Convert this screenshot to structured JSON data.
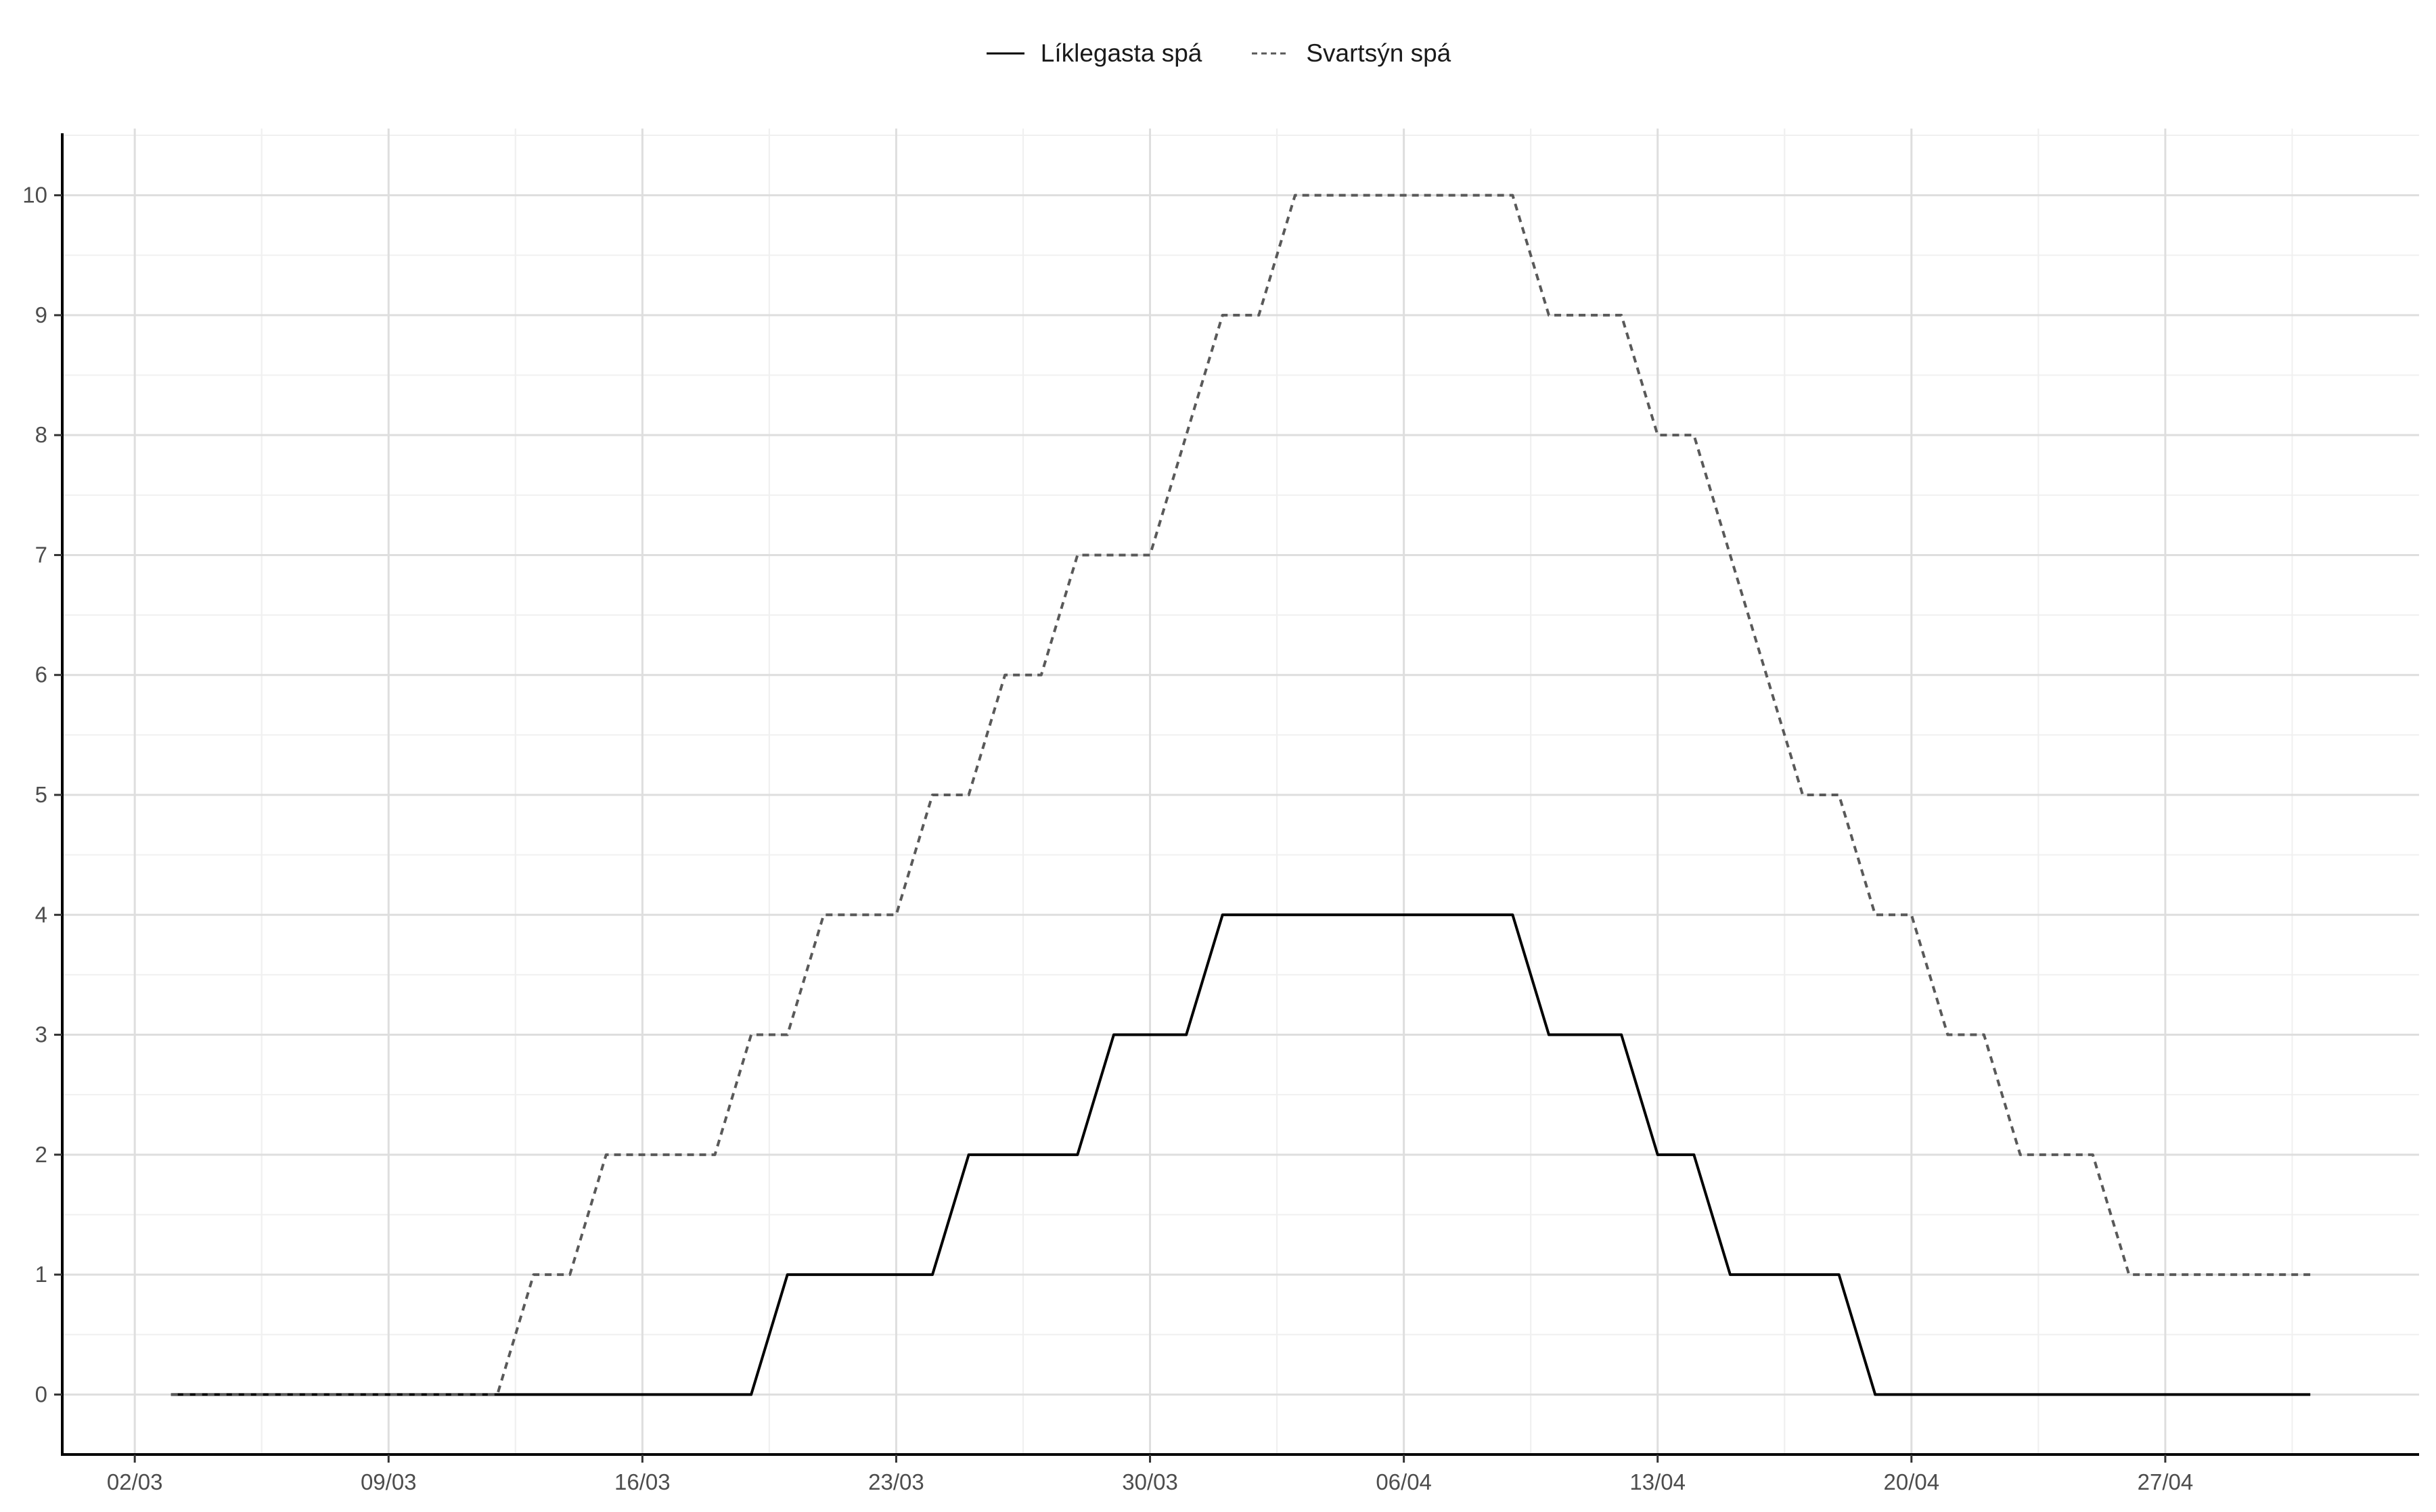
{
  "chart_data": {
    "type": "line",
    "title": "",
    "xlabel": "",
    "ylabel": "",
    "x_ticks": [
      "02/03",
      "09/03",
      "16/03",
      "23/03",
      "30/03",
      "06/04",
      "13/04",
      "20/04",
      "27/04"
    ],
    "y_ticks": [
      "0",
      "1",
      "2",
      "3",
      "4",
      "5",
      "6",
      "7",
      "8",
      "9",
      "10"
    ],
    "xlim": [
      "2020-02-29",
      "2020-05-04"
    ],
    "ylim": [
      -0.5,
      10.5
    ],
    "grid": true,
    "legend_position": "top",
    "x": [
      "2020-03-03",
      "2020-03-04",
      "2020-03-05",
      "2020-03-06",
      "2020-03-07",
      "2020-03-08",
      "2020-03-09",
      "2020-03-10",
      "2020-03-11",
      "2020-03-12",
      "2020-03-13",
      "2020-03-14",
      "2020-03-15",
      "2020-03-16",
      "2020-03-17",
      "2020-03-18",
      "2020-03-19",
      "2020-03-20",
      "2020-03-21",
      "2020-03-22",
      "2020-03-23",
      "2020-03-24",
      "2020-03-25",
      "2020-03-26",
      "2020-03-27",
      "2020-03-28",
      "2020-03-29",
      "2020-03-30",
      "2020-03-31",
      "2020-04-01",
      "2020-04-02",
      "2020-04-03",
      "2020-04-04",
      "2020-04-05",
      "2020-04-06",
      "2020-04-07",
      "2020-04-08",
      "2020-04-09",
      "2020-04-10",
      "2020-04-11",
      "2020-04-12",
      "2020-04-13",
      "2020-04-14",
      "2020-04-15",
      "2020-04-16",
      "2020-04-17",
      "2020-04-18",
      "2020-04-19",
      "2020-04-20",
      "2020-04-21",
      "2020-04-22",
      "2020-04-23",
      "2020-04-24",
      "2020-04-25",
      "2020-04-26",
      "2020-04-27",
      "2020-04-28",
      "2020-04-29",
      "2020-04-30",
      "2020-05-01"
    ],
    "series": [
      {
        "name": "Líklegasta spá",
        "color": "#000000",
        "linetype": "solid",
        "values": [
          0,
          0,
          0,
          0,
          0,
          0,
          0,
          0,
          0,
          0,
          0,
          0,
          0,
          0,
          0,
          0,
          0,
          1,
          1,
          1,
          1,
          1,
          2,
          2,
          2,
          2,
          3,
          3,
          3,
          4,
          4,
          4,
          4,
          4,
          4,
          4,
          4,
          4,
          3,
          3,
          3,
          2,
          2,
          1,
          1,
          1,
          1,
          0,
          0,
          0,
          0,
          0,
          0,
          0,
          0,
          0,
          0,
          0,
          0,
          0
        ]
      },
      {
        "name": "Svartsýn spá",
        "color": "#595959",
        "linetype": "dashed",
        "values": [
          0,
          0,
          0,
          0,
          0,
          0,
          0,
          0,
          0,
          0,
          1,
          1,
          2,
          2,
          2,
          2,
          3,
          3,
          4,
          4,
          4,
          5,
          5,
          6,
          6,
          7,
          7,
          7,
          8,
          9,
          9,
          10,
          10,
          10,
          10,
          10,
          10,
          10,
          9,
          9,
          9,
          8,
          8,
          7,
          6,
          5,
          5,
          4,
          4,
          3,
          3,
          2,
          2,
          2,
          1,
          1,
          1,
          1,
          1,
          1
        ]
      }
    ]
  }
}
